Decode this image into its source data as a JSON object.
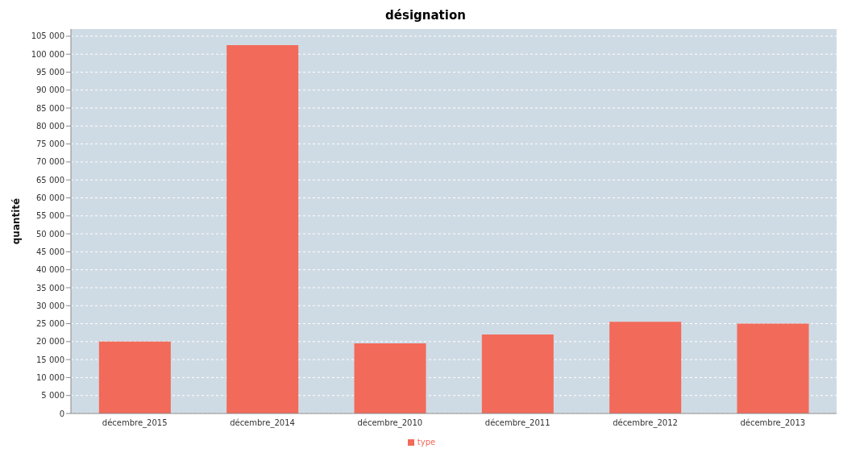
{
  "chart_data": {
    "type": "bar",
    "title": "désignation",
    "ylabel": "quantité",
    "categories": [
      "décembre_2015",
      "décembre_2014",
      "décembre_2010",
      "décembre_2011",
      "décembre_2012",
      "décembre_2013"
    ],
    "series": [
      {
        "name": "type",
        "color": "#f26a5a",
        "values": [
          20000,
          102500,
          19500,
          22000,
          25500,
          25000
        ]
      }
    ],
    "ylim": [
      0,
      107000
    ],
    "yticks": [
      0,
      {
        "value": 5000,
        "label": "5 000"
      },
      {
        "value": 10000,
        "label": "10 000"
      },
      {
        "value": 15000,
        "label": "15 000"
      },
      {
        "value": 20000,
        "label": "20 000"
      },
      {
        "value": 25000,
        "label": "25 000"
      },
      {
        "value": 30000,
        "label": "30 000"
      },
      {
        "value": 35000,
        "label": "35 000"
      },
      {
        "value": 40000,
        "label": "40 000"
      },
      {
        "value": 45000,
        "label": "45 000"
      },
      {
        "value": 50000,
        "label": "50 000"
      },
      {
        "value": 55000,
        "label": "55 000"
      },
      {
        "value": 60000,
        "label": "60 000"
      },
      {
        "value": 65000,
        "label": "65 000"
      },
      {
        "value": 70000,
        "label": "70 000"
      },
      {
        "value": 75000,
        "label": "75 000"
      },
      {
        "value": 80000,
        "label": "80 000"
      },
      {
        "value": 85000,
        "label": "85 000"
      },
      {
        "value": 90000,
        "label": "90 000"
      },
      {
        "value": 95000,
        "label": "95 000"
      },
      {
        "value": 100000,
        "label": "100 000"
      },
      {
        "value": 105000,
        "label": "105 000"
      }
    ],
    "grid": "y",
    "legend": "bottom"
  }
}
